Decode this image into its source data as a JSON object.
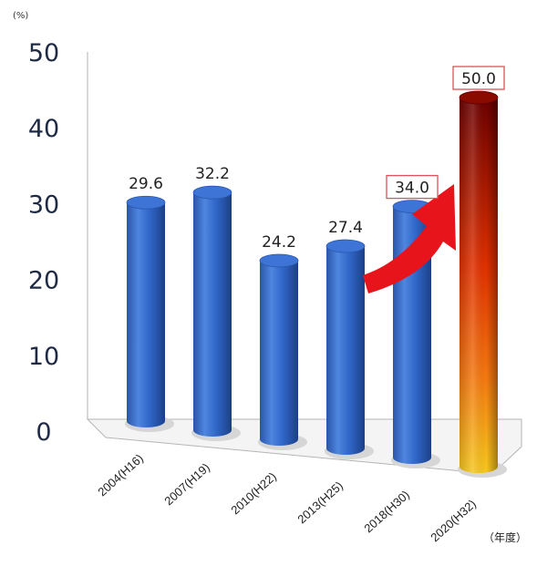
{
  "chart_data": {
    "type": "bar",
    "style": "3d-cylinder",
    "y_unit": "(%)",
    "x_unit": "（年度）",
    "categories": [
      "2004(H16)",
      "2007(H19)",
      "2010(H22)",
      "2013(H25)",
      "2018(H30)",
      "2020(H32)"
    ],
    "values": [
      29.6,
      32.2,
      24.2,
      27.4,
      34.0,
      50.0
    ],
    "labels": [
      "29.6",
      "32.2",
      "24.2",
      "27.4",
      "34.0",
      "50.0"
    ],
    "boxed_labels": [
      4,
      5
    ],
    "ylim": [
      0,
      50
    ],
    "yticks": [
      "0",
      "10",
      "20",
      "30",
      "40",
      "50"
    ],
    "grid": false,
    "colors": {
      "bar": "#2f63c4",
      "target_bar_top": "#6b0000",
      "target_bar_mid": "#e83a00",
      "target_bar_bottom": "#f6c21a",
      "arrow": "#e8141c",
      "label_box": "#e0525a"
    }
  }
}
